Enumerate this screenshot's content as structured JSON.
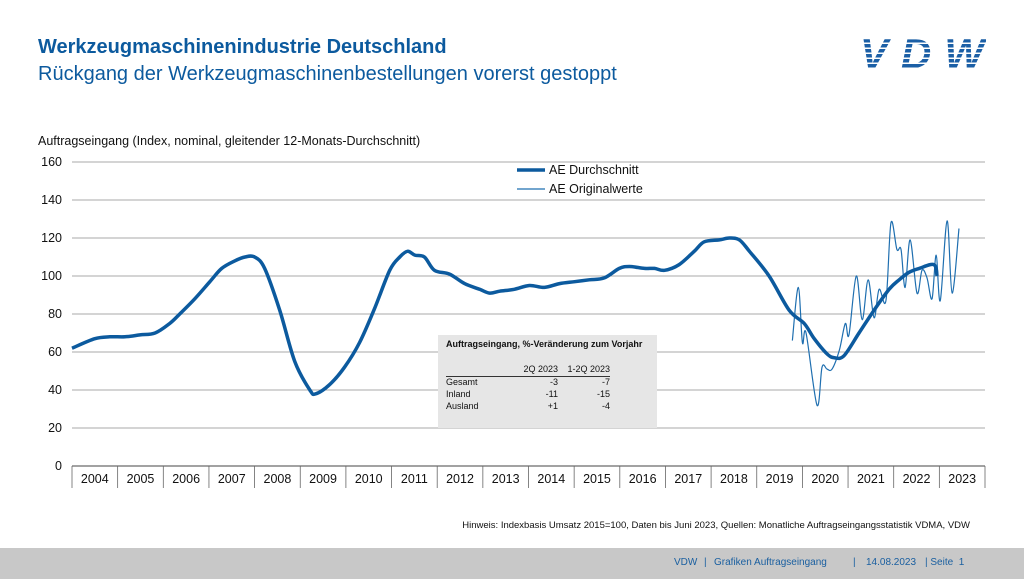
{
  "header": {
    "title": "Werkzeugmaschinenindustrie Deutschland",
    "subtitle": "Rückgang der Werkzeugmaschinenbestellungen vorerst gestoppt",
    "logo": "VDW"
  },
  "chart_data": {
    "type": "line",
    "ylabel": "Auftragseingang (Index, nominal, gleitender 12-Monats-Durchschnitt)",
    "ylim": [
      0,
      160
    ],
    "yticks": [
      0,
      20,
      40,
      60,
      80,
      100,
      120,
      140,
      160
    ],
    "xlim": [
      2004,
      2024
    ],
    "xticks": [
      "2004",
      "2005",
      "2006",
      "2007",
      "2008",
      "2009",
      "2010",
      "2011",
      "2012",
      "2013",
      "2014",
      "2015",
      "2016",
      "2017",
      "2018",
      "2019",
      "2020",
      "2021",
      "2022",
      "2023"
    ],
    "grid": true,
    "legend": "top-center",
    "series": [
      {
        "name": "AE Durchschnitt",
        "color": "#0c5a9e",
        "x": [
          2004.0,
          2004.5,
          2004.83,
          2005.16,
          2005.49,
          2005.82,
          2006.14,
          2006.36,
          2006.69,
          2007.02,
          2007.28,
          2007.57,
          2007.79,
          2008.0,
          2008.22,
          2008.55,
          2008.88,
          2009.21,
          2009.34,
          2009.65,
          2009.97,
          2010.3,
          2010.63,
          2010.96,
          2011.18,
          2011.35,
          2011.51,
          2011.72,
          2011.94,
          2012.27,
          2012.6,
          2012.93,
          2013.15,
          2013.37,
          2013.69,
          2014.02,
          2014.35,
          2014.68,
          2015.01,
          2015.33,
          2015.66,
          2015.99,
          2016.21,
          2016.54,
          2016.76,
          2016.98,
          2017.3,
          2017.63,
          2017.85,
          2018.18,
          2018.4,
          2018.62,
          2018.84,
          2019.27,
          2019.71,
          2020.04,
          2020.26,
          2020.54,
          2020.7,
          2020.91,
          2021.24,
          2021.57,
          2021.9,
          2022.12,
          2022.34,
          2022.56,
          2022.88,
          2022.95
        ],
        "values": [
          62,
          67,
          68,
          68,
          69,
          70,
          75,
          80,
          88,
          97,
          104,
          108,
          110,
          110,
          104,
          82,
          55,
          40,
          38,
          43,
          52,
          65,
          83,
          103,
          110,
          113,
          111,
          110,
          103,
          101,
          96,
          93,
          91,
          92,
          93,
          95,
          94,
          96,
          97,
          98,
          99,
          104,
          105,
          104,
          104,
          103,
          106,
          113,
          118,
          119,
          120,
          119,
          113,
          100,
          82,
          75,
          67,
          59,
          57,
          58,
          70,
          82,
          93,
          98,
          102,
          104,
          106,
          100
        ]
      },
      {
        "name": "AE Originalwerte",
        "color": "#1f6fb0",
        "x": [
          2019.78,
          2019.91,
          2020.0,
          2020.08,
          2020.32,
          2020.43,
          2020.54,
          2020.65,
          2020.81,
          2020.94,
          2021.02,
          2021.18,
          2021.31,
          2021.44,
          2021.57,
          2021.68,
          2021.83,
          2021.94,
          2022.07,
          2022.16,
          2022.25,
          2022.36,
          2022.51,
          2022.62,
          2022.73,
          2022.84,
          2022.93,
          2023.02,
          2023.17,
          2023.28,
          2023.43
        ],
        "values": [
          66,
          94,
          65,
          70,
          32,
          52,
          51,
          51,
          61,
          75,
          69,
          100,
          77,
          98,
          78,
          93,
          87,
          128,
          114,
          114,
          94,
          119,
          91,
          103,
          99,
          88,
          111,
          87,
          129,
          91,
          125
        ]
      }
    ],
    "table": {
      "title": "Auftragseingang, %-Veränderung zum Vorjahr",
      "columns": [
        "",
        "2Q 2023",
        "1-2Q 2023"
      ],
      "rows": [
        [
          "Gesamt",
          "-3",
          "-7"
        ],
        [
          "Inland",
          "-11",
          "-15"
        ],
        [
          "Ausland",
          "+1",
          "-4"
        ]
      ]
    }
  },
  "note": "Hinweis: Indexbasis Umsatz 2015=100, Daten bis Juni 2023, Quellen: Monatliche Auftragseingangsstatistik VDMA, VDW",
  "footer": {
    "org": "VDW",
    "sep1": "|",
    "doc": "Grafiken Auftragseingang",
    "sep2": "|",
    "date": "14.08.2023",
    "page": "| Seite  1"
  }
}
